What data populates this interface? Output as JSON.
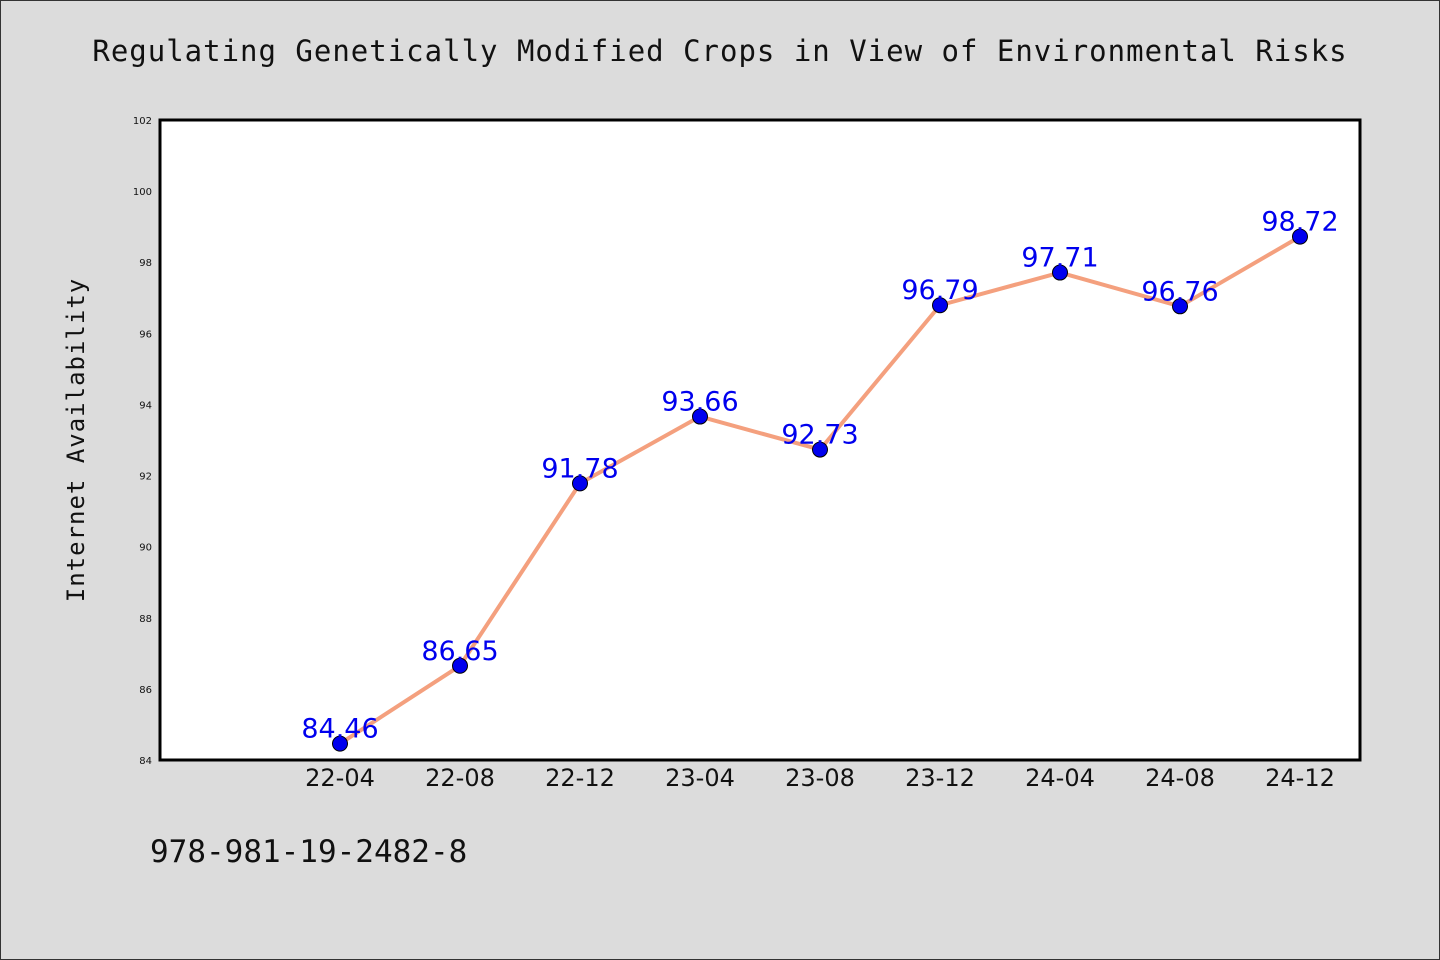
{
  "chart_data": {
    "type": "line",
    "title": "Regulating Genetically Modified Crops in View of Environmental Risks",
    "ylabel": "Internet Availability",
    "xlabel": "",
    "categories": [
      "22-04",
      "22-08",
      "22-12",
      "23-04",
      "23-08",
      "23-12",
      "24-04",
      "24-08",
      "24-12"
    ],
    "series": [
      {
        "values": [
          84.46,
          86.65,
          91.78,
          93.66,
          92.73,
          96.79,
          97.71,
          96.76,
          98.72
        ],
        "data_labels": [
          "84.46",
          "86.65",
          "91.78",
          "93.66",
          "92.73",
          "96.79",
          "97.71",
          "96.76",
          "98.72"
        ],
        "line_color": "#f4a07e",
        "marker_color": "#0000ee",
        "label_color": "#0000ee"
      }
    ],
    "ylim": [
      84,
      102
    ],
    "yticks": [
      84,
      86,
      88,
      90,
      92,
      94,
      96,
      98,
      100,
      102
    ],
    "ytick_labels": [
      "84",
      "86",
      "88",
      "90",
      "92",
      "94",
      "96",
      "98",
      "100",
      "102"
    ],
    "grid": false,
    "legend": "none"
  },
  "footer": {
    "isbn": "978-981-19-2482-8"
  }
}
